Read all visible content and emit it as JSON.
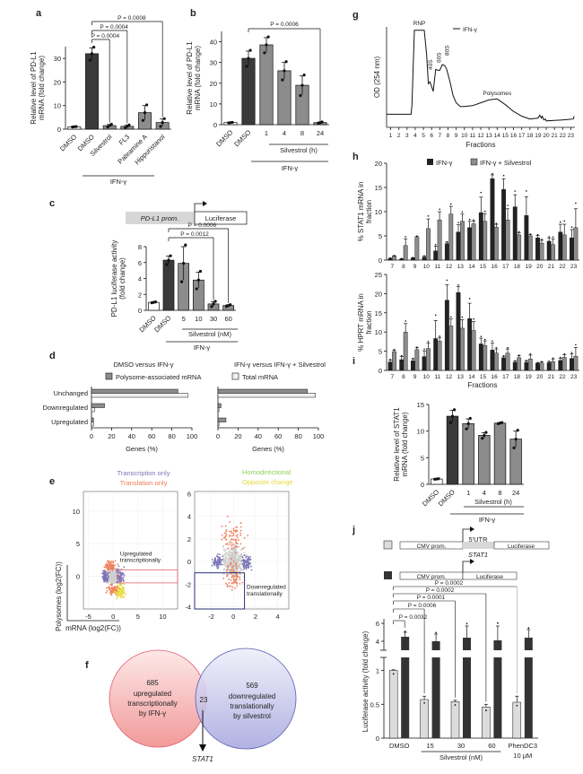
{
  "figure": {
    "panel_labels": [
      "a",
      "b",
      "c",
      "d",
      "e",
      "f",
      "g",
      "h",
      "i",
      "j"
    ]
  },
  "chart_data": [
    {
      "panel": "a",
      "type": "bar",
      "ylabel": "Relative level of PD-L1 mRNA (fold change)",
      "categories": [
        "DMSO",
        "DMSO",
        "Silvestrol",
        "FL3",
        "Pateamine A",
        "Hippuristanol"
      ],
      "values": [
        1,
        32,
        1.5,
        1.2,
        7,
        2.8
      ],
      "errors": [
        0.1,
        2.5,
        0.5,
        0.5,
        3,
        1.5
      ],
      "colors": [
        "#ffffff",
        "#3a3a3a",
        "#8c8c8c",
        "#8c8c8c",
        "#8c8c8c",
        "#8c8c8c"
      ],
      "ylim": [
        0,
        35
      ],
      "yticks": [
        0,
        10,
        20,
        30
      ],
      "group_label": "IFN-γ",
      "pvalues": [
        "P = 0.0004",
        "P = 0.0004",
        "P = 0.0008"
      ]
    },
    {
      "panel": "b",
      "type": "bar",
      "ylabel": "Relative level of PD-L1 mRNA (fold change)",
      "categories": [
        "DMSO",
        "DMSO",
        "1",
        "4",
        "8",
        "24"
      ],
      "values": [
        1,
        32,
        38.5,
        26,
        19,
        1
      ],
      "errors": [
        0.1,
        3.5,
        3.5,
        4,
        4.5,
        0.3
      ],
      "colors": [
        "#ffffff",
        "#3a3a3a",
        "#8c8c8c",
        "#8c8c8c",
        "#8c8c8c",
        "#8c8c8c"
      ],
      "ylim": [
        0,
        45
      ],
      "yticks": [
        0,
        10,
        20,
        30,
        40
      ],
      "sub_group_label": "Silvestrol (h)",
      "group_label": "IFN-γ",
      "pvalues": [
        "P = 0.0006"
      ]
    },
    {
      "panel": "c",
      "type": "bar",
      "construct": {
        "promoter": "PD-L1 prom.",
        "reporter": "Luciferase"
      },
      "ylabel": "PD-L1 luciferase activity (fold change)",
      "categories": [
        "DMSO",
        "DMSO",
        "5",
        "10",
        "30",
        "60"
      ],
      "values": [
        1,
        6.3,
        5.9,
        3.8,
        0.8,
        0.6
      ],
      "errors": [
        0.05,
        0.5,
        2.1,
        1.0,
        0.3,
        0.1
      ],
      "colors": [
        "#ffffff",
        "#3a3a3a",
        "#8c8c8c",
        "#8c8c8c",
        "#8c8c8c",
        "#8c8c8c"
      ],
      "ylim": [
        0,
        8
      ],
      "yticks": [
        0,
        2,
        4,
        6,
        8
      ],
      "sub_group_label": "Silvestrol (nM)",
      "group_label": "IFN-γ",
      "pvalues": [
        "P = 0.0012",
        "P = 0.0006"
      ]
    },
    {
      "panel": "d",
      "type": "bar",
      "orientation": "horizontal",
      "legend": [
        "Polysome-associated mRNA",
        "Total mRNA"
      ],
      "categories": [
        "Unchanged",
        "Downregulated",
        "Upregulated"
      ],
      "xlabel": "Genes (%)",
      "xlim": [
        0,
        100
      ],
      "xticks": [
        0,
        20,
        40,
        60,
        80,
        100
      ],
      "subplots": [
        {
          "title": "DMSO versus IFN-γ",
          "series": [
            {
              "name": "Polysome-associated mRNA",
              "values": [
                86,
                13,
                2
              ]
            },
            {
              "name": "Total mRNA",
              "values": [
                96,
                3,
                2
              ]
            }
          ]
        },
        {
          "title": "IFN-γ versus IFN-γ + Silvestrol",
          "series": [
            {
              "name": "Polysome-associated mRNA",
              "values": [
                89,
                3,
                8
              ]
            },
            {
              "name": "Total mRNA",
              "values": [
                97,
                1,
                1
              ]
            }
          ]
        }
      ]
    },
    {
      "panel": "e",
      "type": "scatter",
      "legend": [
        "Transcription only",
        "Translation only",
        "Homodirectional",
        "Opposite change"
      ],
      "legend_colors": [
        "#7a74b8",
        "#f07a55",
        "#8fd15a",
        "#e8d83a"
      ],
      "xlabel": "mRNA (log2(FC))",
      "ylabel": "Polysomes (log2(FC))",
      "subplots": [
        {
          "xlim": [
            -6,
            13
          ],
          "ylim": [
            -5,
            13
          ],
          "xticks": [
            -5,
            0,
            5,
            10
          ],
          "yticks": [
            0,
            5,
            10
          ],
          "annotation": "Upregulated transcriptionally"
        },
        {
          "xlim": [
            -3.5,
            5
          ],
          "ylim": [
            -4.2,
            6.2
          ],
          "xticks": [
            -2,
            0,
            2,
            4
          ],
          "yticks": [
            -4,
            -2,
            0,
            2,
            4,
            6
          ],
          "annotation": "Downregulated translationally"
        }
      ]
    },
    {
      "panel": "f",
      "type": "venn",
      "sets": [
        {
          "count": "685",
          "label": [
            "upregulated",
            "transcriptionally",
            "by IFN-γ"
          ]
        },
        {
          "count": "569",
          "label": [
            "downregulated",
            "translationally",
            "by silvestrol"
          ]
        }
      ],
      "intersection": "23",
      "arrow_label": "STAT1"
    },
    {
      "panel": "g",
      "type": "line",
      "legend": [
        "IFN-γ"
      ],
      "xlabel": "Fractions",
      "ylabel": "OD (254 nm)",
      "x_tick_labels": [
        "1",
        "2",
        "3",
        "4",
        "5",
        "6",
        "7",
        "8",
        "9",
        "10",
        "11",
        "12",
        "13",
        "14",
        "15",
        "16",
        "17",
        "18",
        "19",
        "20",
        "21",
        "22",
        "23"
      ],
      "annotations": [
        "RNP",
        "40S",
        "60S",
        "80S",
        "Polysomes"
      ],
      "x": [
        0.5,
        3.5,
        3.6,
        3.9,
        5.1,
        5.4,
        5.6,
        5.8,
        5.95,
        6.2,
        6.5,
        6.8,
        7.0,
        7.3,
        7.6,
        7.8,
        8.0,
        8.3,
        8.6,
        9.0,
        9.5,
        10,
        11,
        12,
        13,
        14,
        15,
        16,
        17,
        18,
        19,
        19.2,
        19.4,
        19.5,
        19.7,
        19.9,
        20,
        21,
        22,
        23.3,
        23.4
      ],
      "y": [
        0.1,
        0.1,
        0.2,
        0.98,
        0.98,
        0.72,
        0.42,
        0.44,
        0.4,
        0.34,
        0.57,
        0.56,
        0.56,
        0.62,
        0.61,
        0.58,
        0.52,
        0.42,
        0.3,
        0.22,
        0.18,
        0.18,
        0.19,
        0.22,
        0.25,
        0.26,
        0.2,
        0.13,
        0.08,
        0.05,
        0.06,
        0.09,
        0.06,
        0.08,
        0.04,
        0.05,
        0.03,
        0.035,
        0.04,
        0.05,
        0.08
      ]
    },
    {
      "panel": "h",
      "type": "bar",
      "legend": [
        "IFN-γ",
        "IFN-γ + Silvestrol"
      ],
      "xlabel": "Fractions",
      "categories": [
        "7",
        "8",
        "9",
        "10",
        "11",
        "12",
        "13",
        "14",
        "15",
        "16",
        "17",
        "18",
        "19",
        "20",
        "21",
        "22",
        "23"
      ],
      "subplots": [
        {
          "ylabel": "% STAT1 mRNA in fraction",
          "ylim": [
            0,
            20
          ],
          "yticks": [
            0,
            5,
            10,
            15,
            20
          ],
          "series": [
            {
              "name": "IFN-γ",
              "values": [
                0.3,
                0.2,
                0.4,
                0.6,
                1.9,
                3.4,
                5.8,
                6.7,
                9.8,
                16.8,
                14.6,
                11,
                9.2,
                4.6,
                3.9,
                5.8,
                4.6
              ],
              "errors": [
                0.1,
                0.1,
                0.1,
                0.2,
                1.0,
                0.3,
                1.5,
                1.3,
                3.2,
                0.8,
                2.2,
                2.5,
                3.9,
                0.5,
                0.7,
                1.6,
                1.7
              ]
            },
            {
              "name": "IFN-γ + Silvestrol",
              "values": [
                0.8,
                3.0,
                4.7,
                6.5,
                8.3,
                9.5,
                8.0,
                7.5,
                8.0,
                6.8,
                8.3,
                5.2,
                5.0,
                3.5,
                3.2,
                5.2,
                6.7
              ],
              "errors": [
                0.1,
                1.4,
                0.2,
                2.0,
                1.7,
                1.6,
                1.5,
                0.6,
                1.6,
                0.6,
                2.3,
                0.5,
                0.3,
                0.6,
                1.2,
                2.2,
                3.9
              ]
            }
          ]
        },
        {
          "ylabel": "% HPRT mRNA in fraction",
          "ylim": [
            0,
            25
          ],
          "yticks": [
            0,
            5,
            10,
            15,
            20,
            25
          ],
          "series": [
            {
              "name": "IFN-γ",
              "values": [
                2.2,
                2.8,
                2.5,
                3.6,
                8.3,
                18.3,
                20.3,
                13.5,
                6.9,
                5.3,
                3.3,
                2.1,
                2.1,
                1.8,
                2.0,
                2.6,
                3.1
              ],
              "errors": [
                0.5,
                0.8,
                0.5,
                1.5,
                4.7,
                4.0,
                1.5,
                4.0,
                1.5,
                1.8,
                0.4,
                0.3,
                0.4,
                0.2,
                0.3,
                0.6,
                1.2
              ]
            },
            {
              "name": "IFN-γ + Silvestrol",
              "values": [
                4.9,
                10.0,
                5.4,
                5.7,
                7.6,
                11.6,
                11.0,
                10.4,
                6.5,
                4.5,
                4.5,
                3.3,
                3.0,
                1.9,
                2.3,
                3.4,
                3.7
              ],
              "errors": [
                0.4,
                2.2,
                0.5,
                1.4,
                1.0,
                1.8,
                2.2,
                2.3,
                1.2,
                1.1,
                1.1,
                0.5,
                1.0,
                0.3,
                0.7,
                0.7,
                2.3
              ]
            }
          ]
        }
      ]
    },
    {
      "panel": "i",
      "type": "bar",
      "ylabel": "Relative level of STAT1 mRNA (fold change)",
      "categories": [
        "DMSO",
        "DMSO",
        "1",
        "4",
        "8",
        "24"
      ],
      "values": [
        1,
        12.8,
        11.4,
        9.2,
        11.5,
        8.5
      ],
      "errors": [
        0.05,
        1.1,
        0.9,
        0.5,
        0.1,
        1.5
      ],
      "colors": [
        "#ffffff",
        "#3a3a3a",
        "#8c8c8c",
        "#8c8c8c",
        "#8c8c8c",
        "#8c8c8c"
      ],
      "ylim": [
        0,
        15
      ],
      "yticks": [
        0,
        5,
        10,
        15
      ],
      "sub_group_label": "Silvestrol (h)",
      "group_label": "IFN-γ"
    },
    {
      "panel": "j",
      "type": "bar",
      "constructs": [
        {
          "color": "#dcdcdc",
          "promoter": "CMV prom.",
          "utr": "5′UTR",
          "utr_gene": "STAT1",
          "reporter": "Luciferase"
        },
        {
          "color": "#333333",
          "promoter": "CMV prom.",
          "reporter": "Luciferase"
        }
      ],
      "ylabel": "Luciferase activity (fold change)",
      "categories": [
        "DMSO",
        "15",
        "30",
        "60",
        "PhenDC3"
      ],
      "category_sublabels": [
        "",
        "",
        "",
        "",
        "10 μM"
      ],
      "sub_group_label": "Silvestrol (nM)",
      "series": [
        {
          "name": "CMV-5′UTR STAT1-Luciferase",
          "color": "#dcdcdc",
          "values": [
            1.0,
            0.57,
            0.54,
            0.46,
            0.53
          ],
          "errors": [
            0.01,
            0.05,
            0.02,
            0.04,
            0.09
          ]
        },
        {
          "name": "CMV-Luciferase",
          "color": "#333333",
          "values": [
            4.5,
            4.0,
            4.4,
            4.1,
            4.4
          ],
          "errors": [
            0.5,
            0.8,
            1.3,
            1.6,
            0.9
          ]
        }
      ],
      "ylim_lower": [
        0,
        1.1
      ],
      "ylim_upper": [
        3,
        6.5
      ],
      "yticks_lower": [
        "0",
        "0.5",
        "1"
      ],
      "yticks_upper": [
        "4",
        "6"
      ],
      "pvalues": [
        "P = 0.0032",
        "P = 0.0006",
        "P = 0.0001",
        "P = 0.0002",
        "P = 0.0002"
      ]
    }
  ]
}
